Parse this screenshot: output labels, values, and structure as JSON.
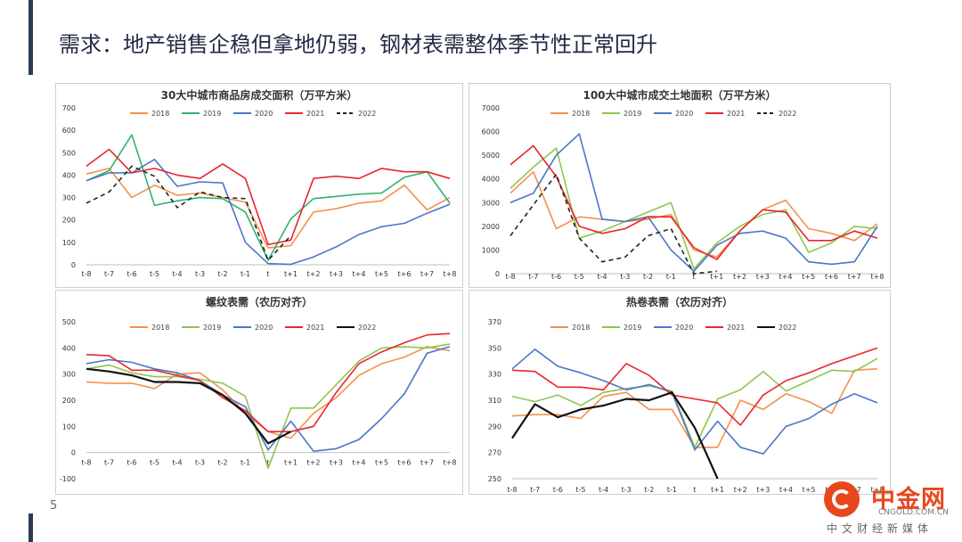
{
  "slide": {
    "title": "需求：地产销售企稳但拿地仍弱，钢材表需整体季节性正常回升",
    "page_number": "5"
  },
  "logo": {
    "main_text": "中金网",
    "url_text": "CNGOLD.COM.CN",
    "sub_text": "中文财经新媒体",
    "accent_color": "#e8471d"
  },
  "chart_data": [
    {
      "type": "line",
      "title": "30大中城市商品房成交面积（万平方米）",
      "x": [
        "t-8",
        "t-7",
        "t-6",
        "t-5",
        "t-4",
        "t-3",
        "t-2",
        "t-1",
        "t",
        "t+1",
        "t+2",
        "t+3",
        "t+4",
        "t+5",
        "t+6",
        "t+7",
        "t+8"
      ],
      "ylim": [
        0,
        700
      ],
      "yticks": [
        0,
        100,
        200,
        300,
        400,
        500,
        600,
        700
      ],
      "legend_position": "top",
      "series": [
        {
          "name": "2018",
          "color": "#f4924a",
          "dash": false,
          "values": [
            405,
            430,
            300,
            355,
            310,
            320,
            300,
            280,
            75,
            85,
            235,
            250,
            275,
            285,
            355,
            245,
            300
          ]
        },
        {
          "name": "2019",
          "color": "#2fb36b",
          "dash": false,
          "values": [
            375,
            420,
            580,
            265,
            285,
            300,
            295,
            235,
            20,
            205,
            295,
            305,
            315,
            320,
            390,
            415,
            275
          ]
        },
        {
          "name": "2020",
          "color": "#4a77c7",
          "dash": false,
          "values": [
            375,
            410,
            410,
            470,
            350,
            370,
            365,
            100,
            5,
            2,
            35,
            80,
            135,
            170,
            185,
            230,
            270
          ]
        },
        {
          "name": "2021",
          "color": "#e8262b",
          "dash": false,
          "values": [
            440,
            515,
            410,
            430,
            400,
            385,
            450,
            385,
            90,
            110,
            385,
            395,
            385,
            430,
            415,
            415,
            385
          ]
        },
        {
          "name": "2022",
          "color": "#222222",
          "dash": true,
          "values": [
            275,
            325,
            440,
            395,
            255,
            325,
            300,
            295,
            20,
            130,
            null,
            null,
            null,
            null,
            null,
            null,
            null
          ]
        }
      ]
    },
    {
      "type": "line",
      "title": "100大中城市成交土地面积（万平方米）",
      "x": [
        "t-8",
        "t-7",
        "t-6",
        "t-5",
        "t-4",
        "t-3",
        "t-2",
        "t-1",
        "t",
        "t+1",
        "t+2",
        "t+3",
        "t+4",
        "t+5",
        "t+6",
        "t+7",
        "t+8"
      ],
      "ylim": [
        0,
        7000
      ],
      "yticks": [
        0,
        1000,
        2000,
        3000,
        4000,
        5000,
        6000,
        7000
      ],
      "legend_position": "top",
      "series": [
        {
          "name": "2018",
          "color": "#f4924a",
          "dash": false,
          "values": [
            3400,
            4300,
            1900,
            2400,
            2300,
            2200,
            2300,
            2500,
            1000,
            700,
            1800,
            2700,
            3100,
            1900,
            1700,
            1400,
            2100
          ]
        },
        {
          "name": "2019",
          "color": "#8fc550",
          "dash": false,
          "values": [
            3600,
            4500,
            5300,
            1500,
            1800,
            2200,
            2600,
            3000,
            200,
            1300,
            2000,
            2500,
            2700,
            900,
            1300,
            2000,
            1900
          ]
        },
        {
          "name": "2020",
          "color": "#4a77c7",
          "dash": false,
          "values": [
            3000,
            3400,
            5000,
            5900,
            2300,
            2200,
            2400,
            1000,
            100,
            1200,
            1700,
            1800,
            1500,
            500,
            400,
            500,
            2000
          ]
        },
        {
          "name": "2021",
          "color": "#e8262b",
          "dash": false,
          "values": [
            4600,
            5400,
            4100,
            2000,
            1700,
            1900,
            2400,
            2400,
            1100,
            600,
            1800,
            2700,
            2600,
            1400,
            1400,
            1800,
            1500
          ]
        },
        {
          "name": "2022",
          "color": "#222222",
          "dash": true,
          "values": [
            1600,
            2900,
            4200,
            1500,
            500,
            700,
            1600,
            1900,
            0,
            100,
            null,
            null,
            null,
            null,
            null,
            null,
            null
          ]
        }
      ]
    },
    {
      "type": "line",
      "title": "螺纹表需（农历对齐）",
      "x": [
        "t-8",
        "t-7",
        "t-6",
        "t-5",
        "t-4",
        "t-3",
        "t-2",
        "t-1",
        "t",
        "t+1",
        "t+2",
        "t+3",
        "t+4",
        "t+5",
        "t+6",
        "t+7",
        "t+8"
      ],
      "ylim": [
        -100,
        500
      ],
      "yticks": [
        -100,
        0,
        100,
        200,
        300,
        400,
        500
      ],
      "legend_position": "top",
      "series": [
        {
          "name": "2018",
          "color": "#f4924a",
          "dash": false,
          "values": [
            270,
            265,
            265,
            245,
            300,
            305,
            240,
            150,
            80,
            55,
            150,
            210,
            295,
            340,
            365,
            405,
            390
          ]
        },
        {
          "name": "2019",
          "color": "#8fc550",
          "dash": false,
          "values": [
            320,
            335,
            305,
            290,
            290,
            280,
            265,
            215,
            -60,
            170,
            170,
            260,
            350,
            400,
            405,
            400,
            415
          ]
        },
        {
          "name": "2020",
          "color": "#4a77c7",
          "dash": false,
          "values": [
            340,
            355,
            345,
            320,
            305,
            275,
            220,
            175,
            10,
            120,
            5,
            15,
            50,
            130,
            225,
            380,
            405
          ]
        },
        {
          "name": "2021",
          "color": "#e8262b",
          "dash": false,
          "values": [
            375,
            370,
            315,
            315,
            295,
            275,
            210,
            160,
            80,
            80,
            100,
            230,
            340,
            385,
            420,
            450,
            455
          ]
        },
        {
          "name": "2022",
          "color": "#111111",
          "dash": false,
          "values": [
            320,
            310,
            295,
            270,
            270,
            265,
            220,
            150,
            35,
            80,
            null,
            null,
            null,
            null,
            null,
            null,
            null
          ]
        }
      ]
    },
    {
      "type": "line",
      "title": "热卷表需（农历对齐）",
      "x": [
        "t-8",
        "t-7",
        "t-6",
        "t-5",
        "t-4",
        "t-3",
        "t-2",
        "t-1",
        "t",
        "t+1",
        "t+2",
        "t+3",
        "t+4",
        "t+5",
        "t+6",
        "t+7",
        "t+8"
      ],
      "ylim": [
        250,
        370
      ],
      "yticks": [
        250,
        270,
        290,
        310,
        330,
        350,
        370
      ],
      "legend_position": "top",
      "series": [
        {
          "name": "2018",
          "color": "#f4924a",
          "dash": false,
          "values": [
            298,
            299,
            299,
            296,
            313,
            316,
            303,
            303,
            274,
            274,
            310,
            303,
            315,
            309,
            300,
            333,
            334
          ]
        },
        {
          "name": "2019",
          "color": "#8fc550",
          "dash": false,
          "values": [
            313,
            309,
            314,
            306,
            316,
            319,
            321,
            317,
            274,
            311,
            318,
            332,
            317,
            325,
            333,
            332,
            342
          ]
        },
        {
          "name": "2020",
          "color": "#4a77c7",
          "dash": false,
          "values": [
            334,
            349,
            336,
            331,
            325,
            318,
            322,
            316,
            272,
            294,
            274,
            269,
            290,
            296,
            307,
            315,
            308
          ]
        },
        {
          "name": "2021",
          "color": "#e8262b",
          "dash": false,
          "values": [
            333,
            332,
            320,
            320,
            318,
            338,
            329,
            314,
            311,
            308,
            291,
            314,
            325,
            331,
            338,
            344,
            350
          ]
        },
        {
          "name": "2022",
          "color": "#111111",
          "dash": false,
          "values": [
            281,
            307,
            297,
            303,
            306,
            311,
            310,
            316,
            289,
            250,
            null,
            null,
            null,
            null,
            null,
            null,
            null
          ]
        }
      ]
    }
  ]
}
